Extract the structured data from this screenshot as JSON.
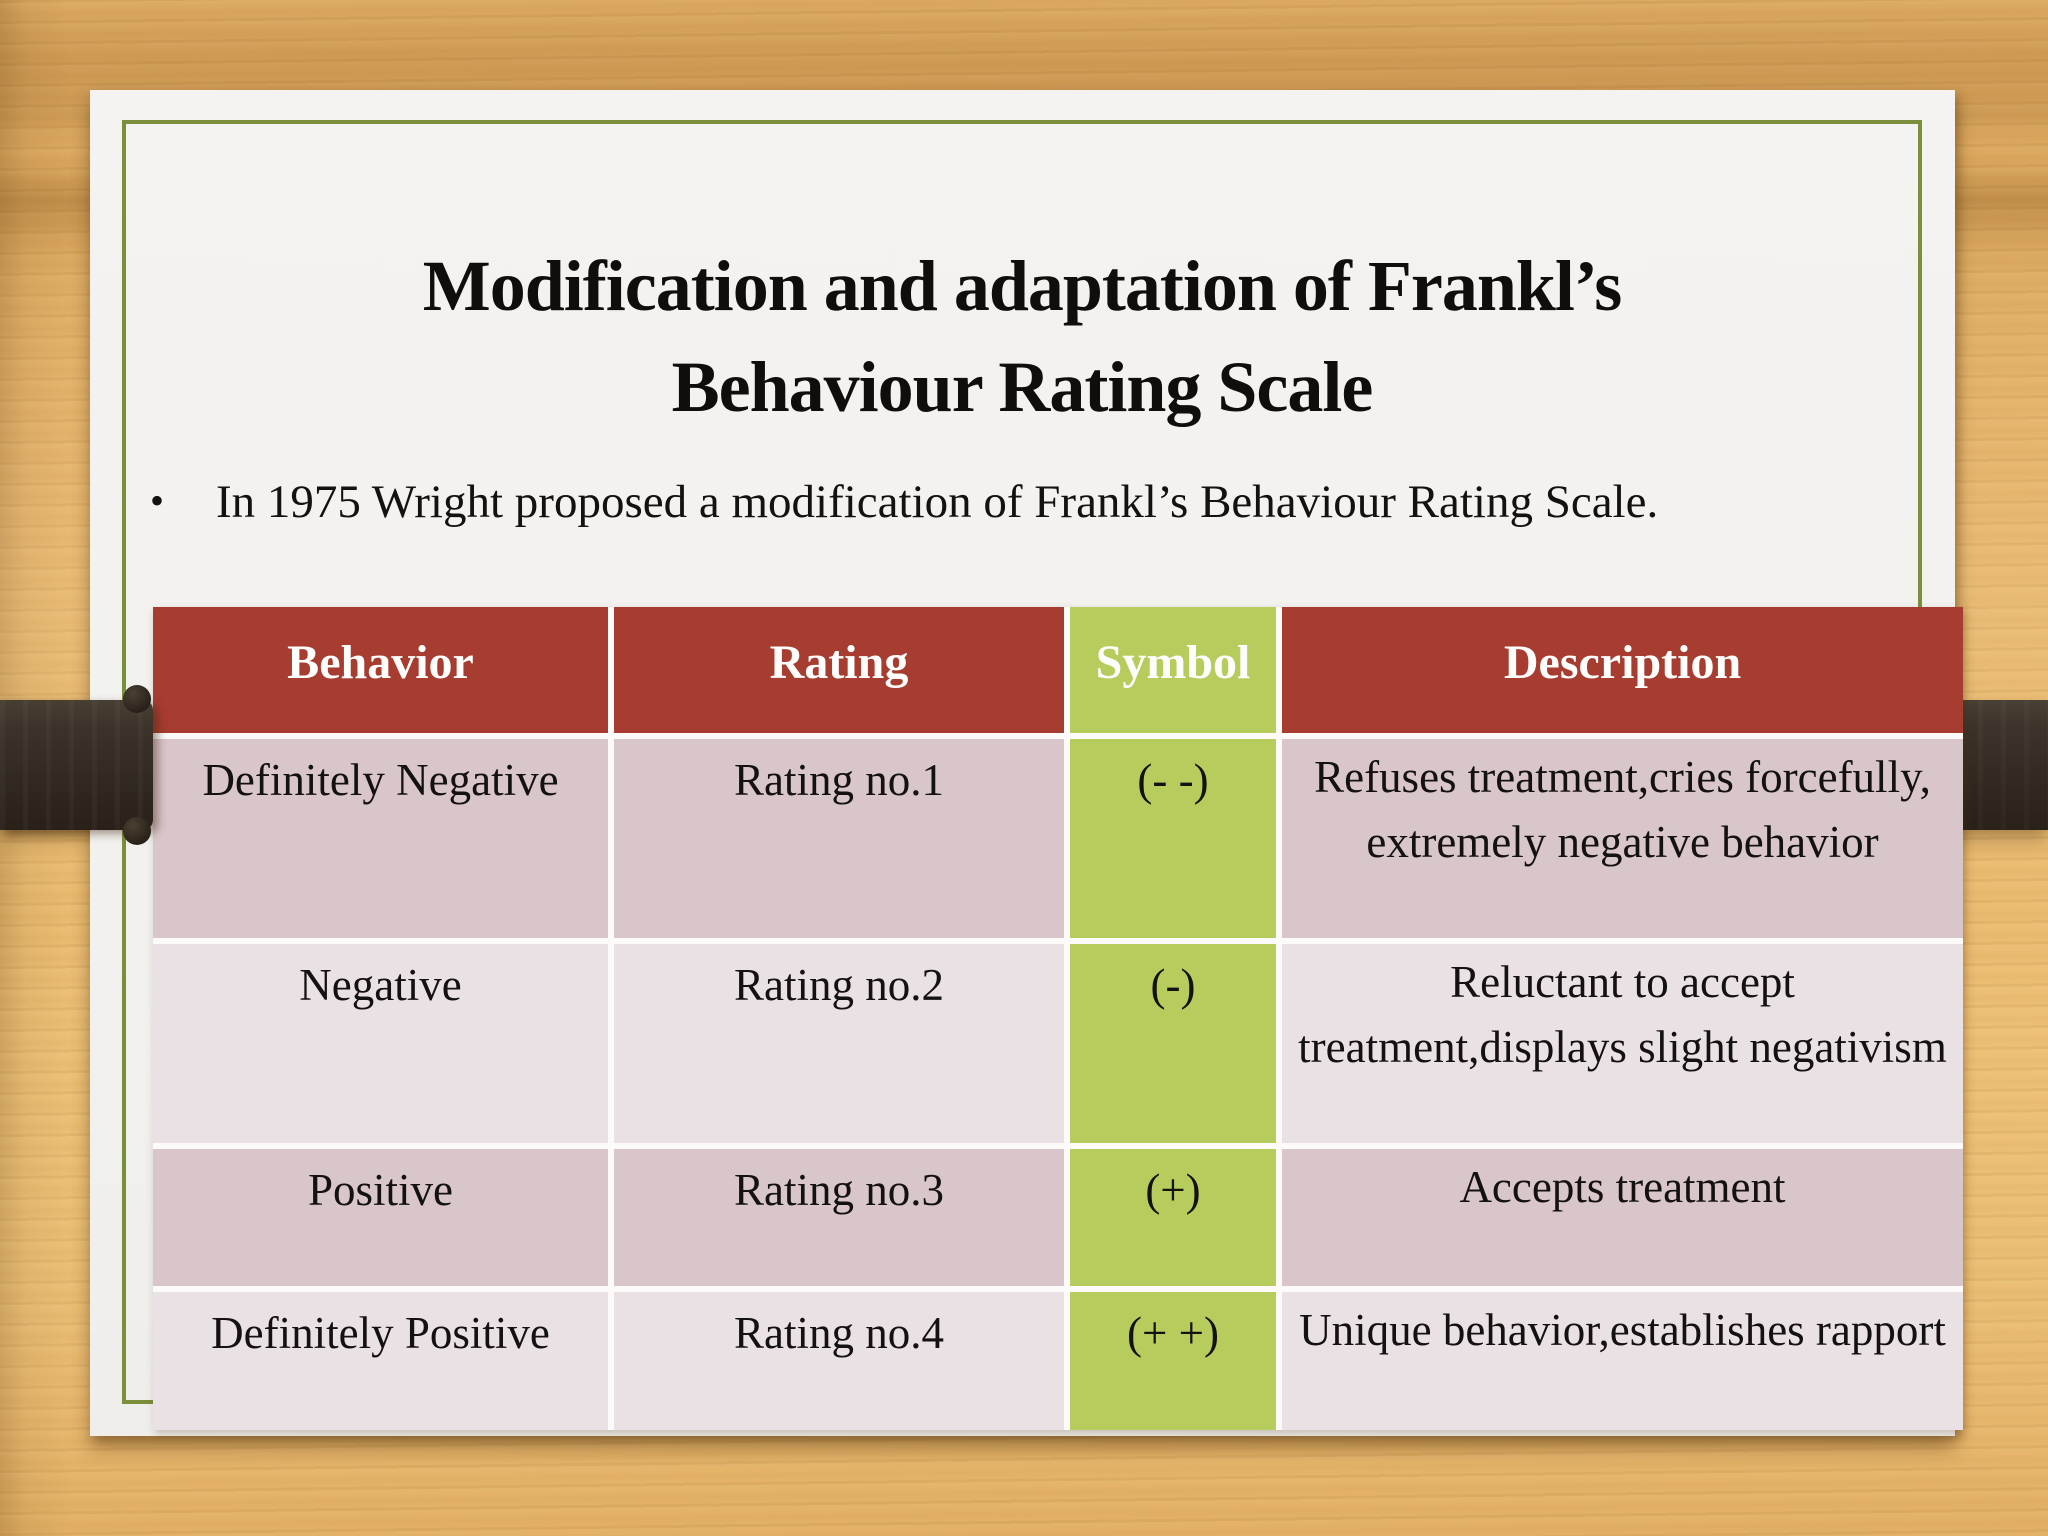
{
  "slide": {
    "title_line1": "Modification and adaptation of Frankl’s",
    "title_line2": "Behaviour Rating Scale",
    "bullet_marker": "•",
    "bullet": "In 1975 Wright proposed a modification of Frankl’s Behaviour Rating Scale."
  },
  "table": {
    "headers": [
      "Behavior",
      "Rating",
      "Symbol",
      "Description"
    ],
    "rows": [
      {
        "behavior": "Definitely Negative",
        "rating": "Rating no.1",
        "symbol": "(- -)",
        "description": "Refuses treatment,cries forcefully, extremely negative behavior"
      },
      {
        "behavior": "Negative",
        "rating": "Rating no.2",
        "symbol": "(-)",
        "description": "Reluctant to accept treatment,displays slight negativism"
      },
      {
        "behavior": "Positive",
        "rating": "Rating no.3",
        "symbol": "(+)",
        "description": "Accepts treatment"
      },
      {
        "behavior": "Definitely Positive",
        "rating": "Rating no.4",
        "symbol": "(+ +)",
        "description": "Unique behavior,establishes rapport"
      }
    ]
  },
  "colors": {
    "header_red": "#a73c31",
    "symbol_green": "#b6cd5e",
    "row_mauve": "#d9c6ca",
    "row_light": "#eae1e4",
    "cell_gap": "#fcfbfa",
    "frame_olive": "#7a8e3c",
    "beam_brown": "#372e25",
    "paper": "#f3f2ef",
    "wood": "#e3b268",
    "title_text": "#0f0e0c",
    "header_text": "#fdfdfc",
    "body_text": "#141210"
  }
}
